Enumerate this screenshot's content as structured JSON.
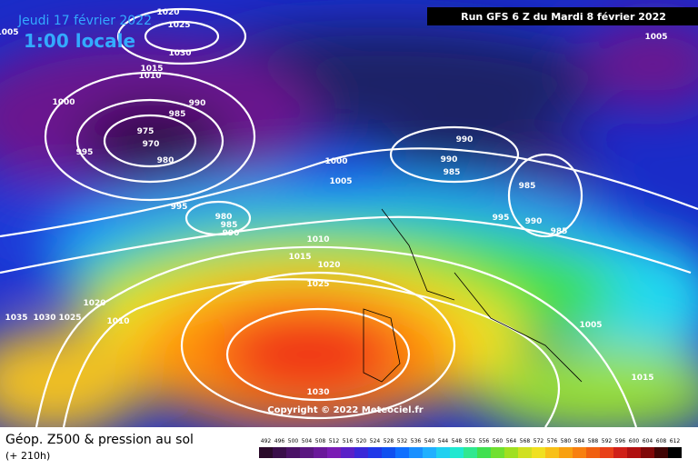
{
  "header": {
    "date": "Jeudi 17 février 2022",
    "time": "1:00 locale",
    "run": "Run GFS 6 Z du Mardi 8 février 2022"
  },
  "copyright": "Copyright © 2022 Meteociel.fr",
  "footer": {
    "title": "Géop. Z500 & pression au sol",
    "lead": "(+ 210h)"
  },
  "isobar_labels": [
    "1020",
    "1025",
    "1030",
    "1015",
    "1010",
    "1005",
    "1000",
    "990",
    "985",
    "975",
    "970",
    "980",
    "995",
    "995",
    "980",
    "985",
    "990",
    "1000",
    "1005",
    "990",
    "990",
    "985",
    "985",
    "995",
    "990",
    "985",
    "1005",
    "1010",
    "1015",
    "1020",
    "1025",
    "1020",
    "1035",
    "1030",
    "1025",
    "1010",
    "1005",
    "1015",
    "1030"
  ],
  "scale": [
    "492",
    "496",
    "500",
    "504",
    "508",
    "512",
    "516",
    "520",
    "524",
    "528",
    "532",
    "536",
    "540",
    "544",
    "548",
    "552",
    "556",
    "560",
    "564",
    "568",
    "572",
    "576",
    "580",
    "584",
    "588",
    "592",
    "596",
    "600",
    "604",
    "608",
    "612"
  ]
}
